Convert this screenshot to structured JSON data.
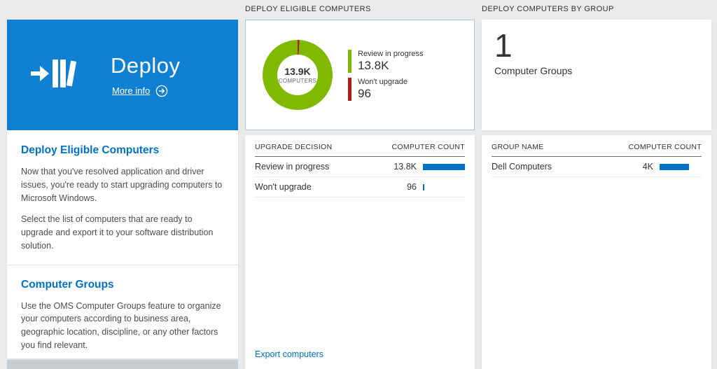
{
  "colors": {
    "tile_blue": "#0f80d4",
    "accent_blue": "#0072c6",
    "green": "#7fba00",
    "red": "#b21b1b",
    "bar_blue": "#0072c6"
  },
  "left_panel": {
    "tile": {
      "title": "Deploy",
      "more_info_label": "More info"
    },
    "sections": [
      {
        "heading": "Deploy Eligible Computers",
        "paragraphs": [
          "Now that you've resolved application and driver issues, you're ready to start upgrading computers to Microsoft Windows.",
          "Select the list of computers that are ready to upgrade and export it to your software distribution solution."
        ]
      },
      {
        "heading": "Computer Groups",
        "paragraphs": [
          "Use the OMS Computer Groups feature to organize your computers according to business area, geographic location, discipline, or any other factors you find relevant."
        ]
      }
    ]
  },
  "eligible_panel": {
    "header": "DEPLOY ELIGIBLE COMPUTERS",
    "donut": {
      "center_value": "13.9K",
      "center_label": "COMPUTERS",
      "red_slice_deg": 3,
      "legend": [
        {
          "label": "Review in progress",
          "value": "13.8K"
        },
        {
          "label": "Won't upgrade",
          "value": "96"
        }
      ]
    },
    "table": {
      "columns": [
        "UPGRADE DECISION",
        "COMPUTER COUNT"
      ],
      "rows": [
        {
          "label": "Review in progress",
          "value": "13.8K",
          "bar_pct": 100
        },
        {
          "label": "Won't upgrade",
          "value": "96",
          "bar_pct": 3
        }
      ]
    },
    "export_link": "Export computers"
  },
  "groups_panel": {
    "header": "DEPLOY COMPUTERS BY GROUP",
    "tile": {
      "value": "1",
      "label": "Computer Groups"
    },
    "table": {
      "columns": [
        "GROUP NAME",
        "COMPUTER COUNT"
      ],
      "rows": [
        {
          "label": "Dell Computers",
          "value": "4K",
          "bar_pct": 70
        }
      ]
    }
  }
}
